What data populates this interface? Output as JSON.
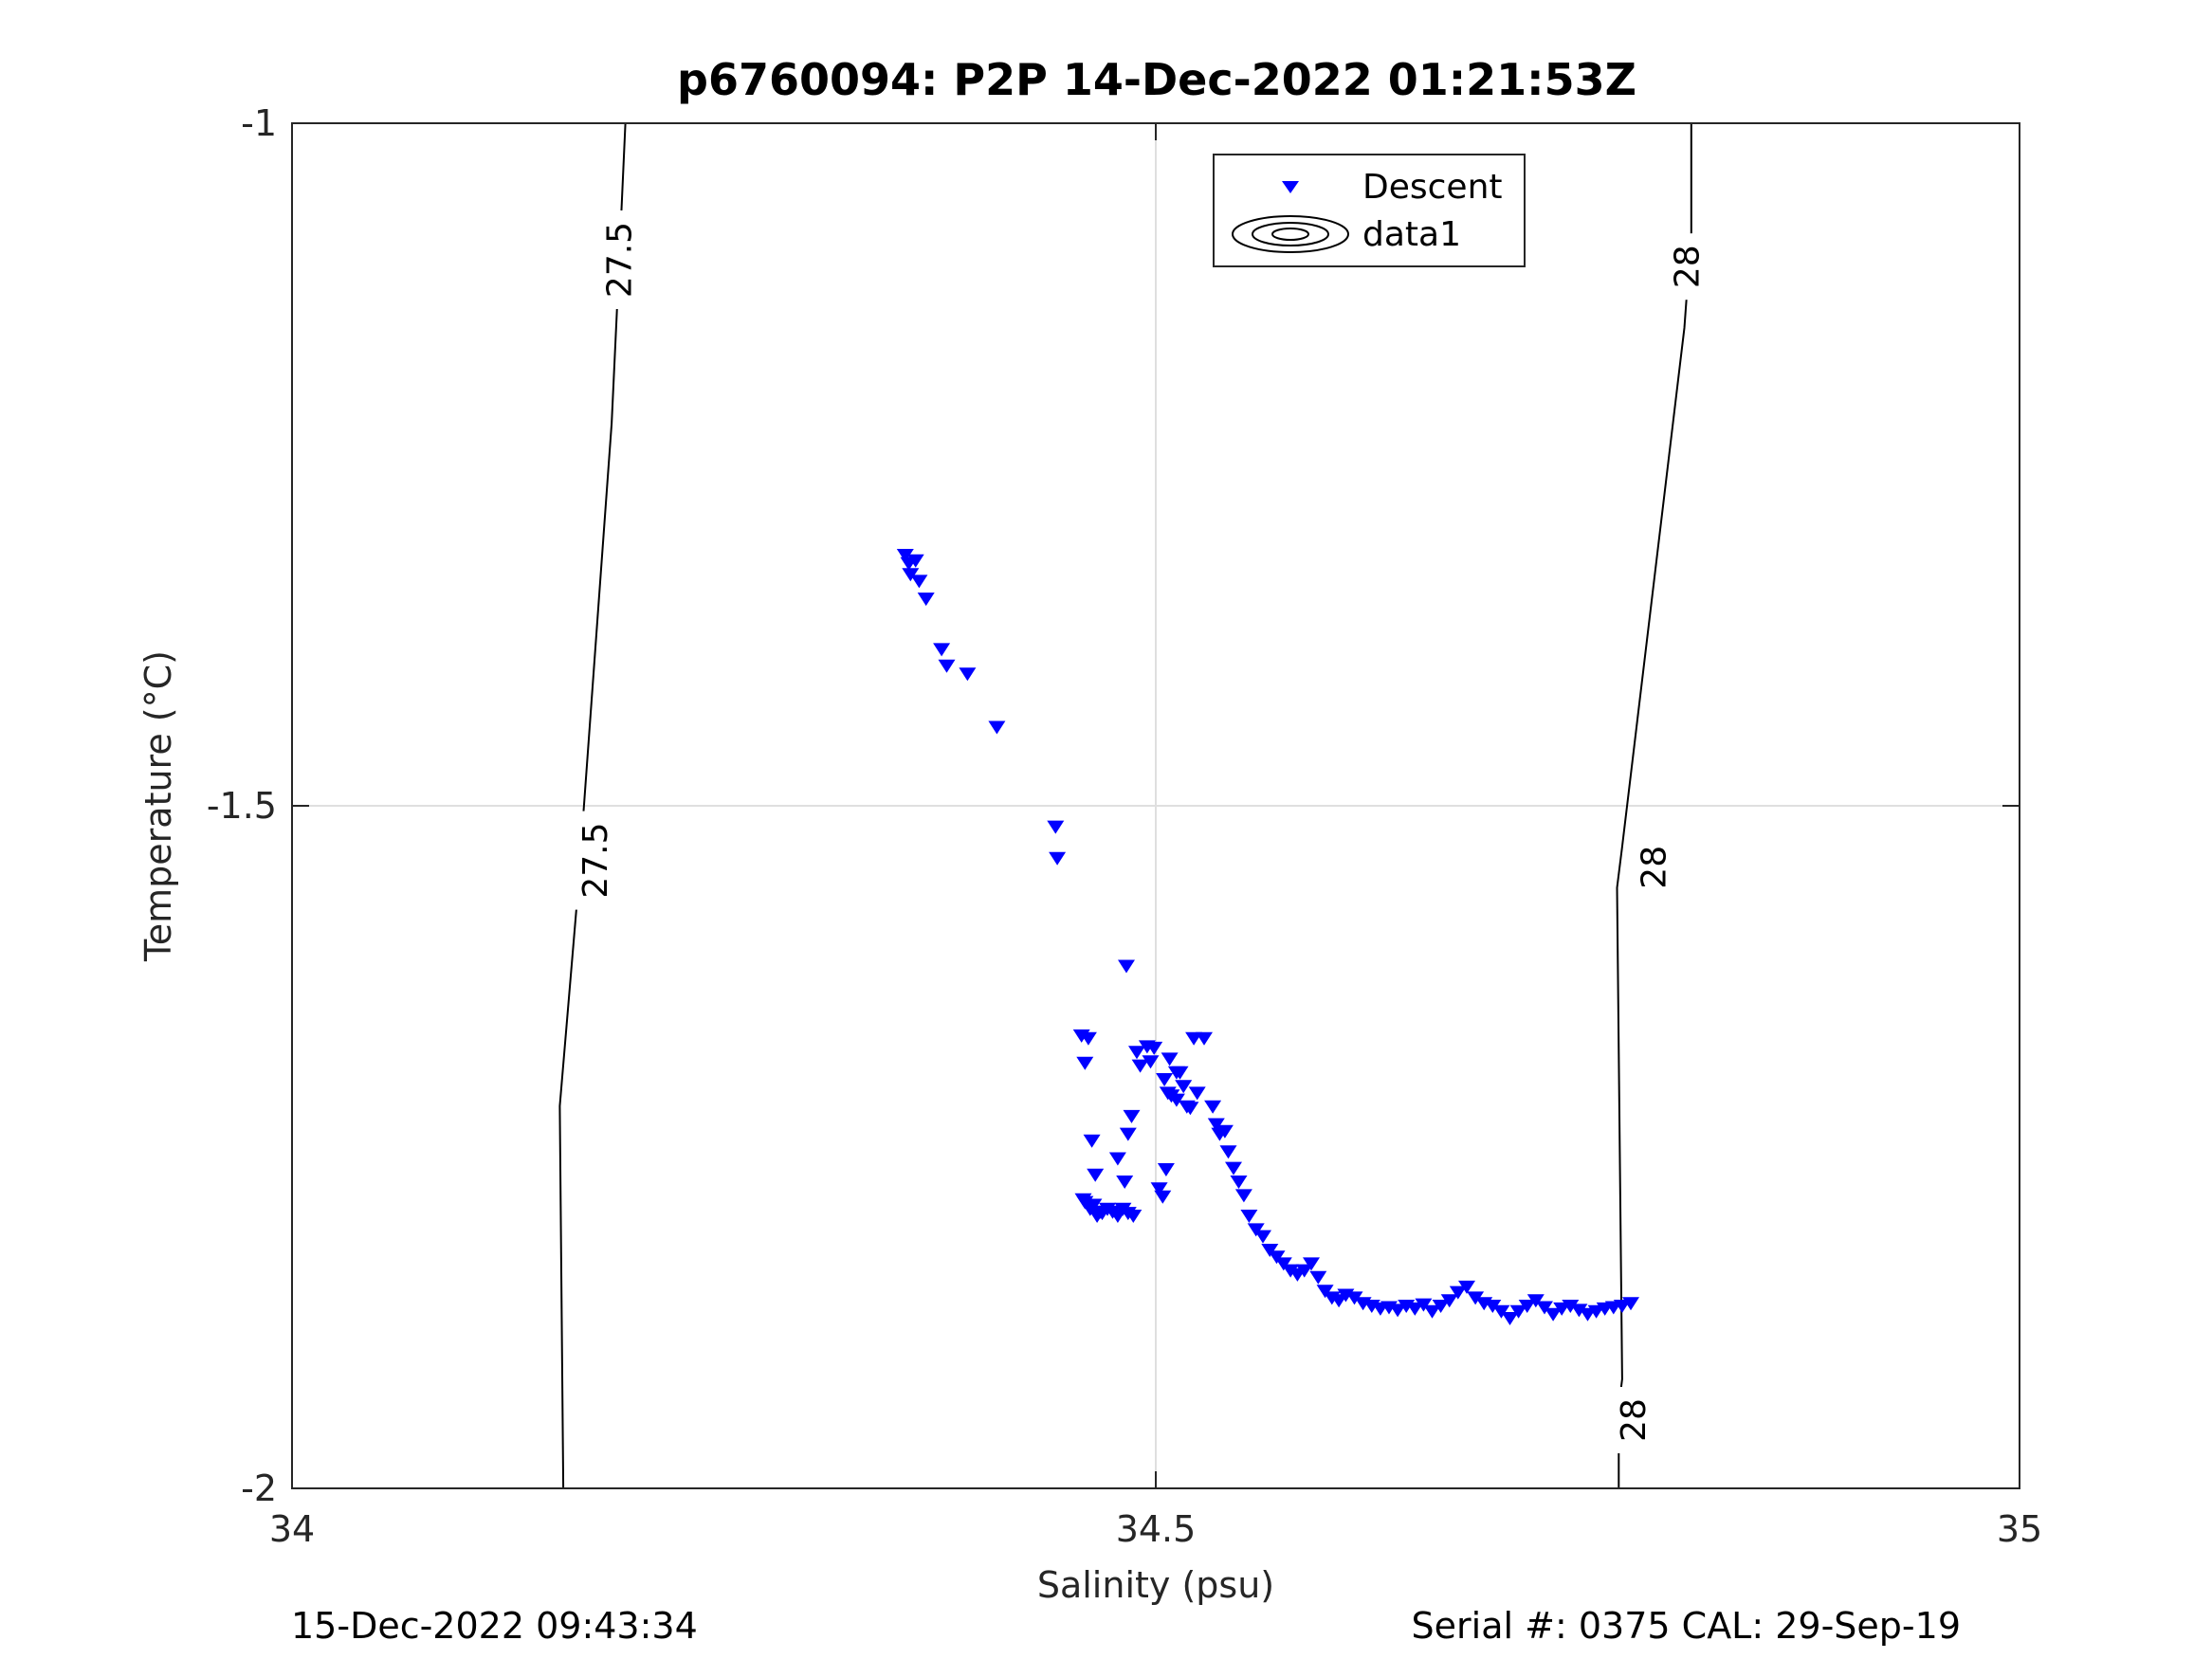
{
  "chart_data": {
    "type": "scatter",
    "title": "p6760094: P2P 14-Dec-2022 01:21:53Z",
    "xlabel": "Salinity (psu)",
    "ylabel": "Temperature (°C)",
    "xlim": [
      34,
      35
    ],
    "ylim": [
      -2,
      -1
    ],
    "x_ticks": [
      "34",
      "34.5",
      "35"
    ],
    "y_ticks": [
      "-1",
      "-1.5",
      "-2"
    ],
    "grid": true,
    "legend_position": "top-center",
    "legend": [
      {
        "label": "Descent",
        "marker": "triangle-down",
        "color": "#0000ff"
      },
      {
        "label": "data1",
        "marker": "contour",
        "color": "#000000"
      }
    ],
    "footer_left": "15-Dec-2022 09:43:34",
    "footer_right": "Serial #: 0375  CAL: 29-Sep-19",
    "contours": [
      {
        "level": "27.5",
        "points": [
          [
            34.193,
            -1.0
          ],
          [
            34.188,
            -1.14
          ],
          [
            34.185,
            -1.22
          ],
          [
            34.165,
            -1.57
          ],
          [
            34.155,
            -1.72
          ],
          [
            34.157,
            -2.0
          ]
        ],
        "labels": [
          {
            "text": "27.5",
            "x": 34.189,
            "y": -1.1
          },
          {
            "text": "27.5",
            "x": 34.175,
            "y": -1.54
          }
        ]
      },
      {
        "level": "28",
        "points": [
          [
            34.81,
            -1.0
          ],
          [
            34.81,
            -1.08
          ],
          [
            34.806,
            -1.15
          ],
          [
            34.77,
            -1.53
          ],
          [
            34.767,
            -1.56
          ],
          [
            34.77,
            -1.92
          ],
          [
            34.768,
            -1.94
          ],
          [
            34.768,
            -2.0
          ]
        ],
        "labels": [
          {
            "text": "28",
            "x": 34.807,
            "y": -1.105
          },
          {
            "text": "28",
            "x": 34.788,
            "y": -1.545
          },
          {
            "text": "28",
            "x": 34.776,
            "y": -1.95
          }
        ]
      }
    ],
    "series": [
      {
        "name": "Descent",
        "color": "#0000ff",
        "marker": "triangle-down",
        "x": [
          34.355,
          34.357,
          34.358,
          34.361,
          34.363,
          34.367,
          34.376,
          34.379,
          34.391,
          34.408,
          34.442,
          34.443,
          34.483,
          34.457,
          34.459,
          34.461,
          34.463,
          34.465,
          34.458,
          34.459,
          34.462,
          34.464,
          34.466,
          34.468,
          34.469,
          34.472,
          34.475,
          34.478,
          34.481,
          34.484,
          34.487,
          34.478,
          34.482,
          34.484,
          34.486,
          34.489,
          34.491,
          34.495,
          34.497,
          34.499,
          34.502,
          34.504,
          34.506,
          34.508,
          34.512,
          34.505,
          34.507,
          34.509,
          34.512,
          34.514,
          34.516,
          34.518,
          34.52,
          34.522,
          34.524,
          34.528,
          34.533,
          34.535,
          34.537,
          34.54,
          34.542,
          34.545,
          34.548,
          34.551,
          34.554,
          34.558,
          34.562,
          34.566,
          34.57,
          34.574,
          34.578,
          34.582,
          34.586,
          34.59,
          34.594,
          34.598,
          34.602,
          34.606,
          34.61,
          34.615,
          34.62,
          34.625,
          34.63,
          34.635,
          34.64,
          34.645,
          34.65,
          34.655,
          34.66,
          34.665,
          34.67,
          34.675,
          34.68,
          34.685,
          34.69,
          34.695,
          34.7,
          34.705,
          34.71,
          34.715,
          34.72,
          34.725,
          34.73,
          34.735,
          34.74,
          34.745,
          34.75,
          34.755,
          34.76,
          34.765,
          34.77,
          34.775
        ],
        "y": [
          -1.316,
          -1.322,
          -1.33,
          -1.32,
          -1.335,
          -1.348,
          -1.385,
          -1.397,
          -1.403,
          -1.442,
          -1.515,
          -1.538,
          -1.617,
          -1.668,
          -1.688,
          -1.67,
          -1.745,
          -1.77,
          -1.788,
          -1.79,
          -1.795,
          -1.792,
          -1.8,
          -1.797,
          -1.798,
          -1.795,
          -1.797,
          -1.8,
          -1.795,
          -1.798,
          -1.8,
          -1.758,
          -1.775,
          -1.74,
          -1.727,
          -1.68,
          -1.69,
          -1.676,
          -1.687,
          -1.677,
          -1.78,
          -1.786,
          -1.766,
          -1.685,
          -1.695,
          -1.7,
          -1.71,
          -1.712,
          -1.715,
          -1.695,
          -1.705,
          -1.72,
          -1.721,
          -1.67,
          -1.71,
          -1.67,
          -1.72,
          -1.733,
          -1.74,
          -1.738,
          -1.753,
          -1.765,
          -1.775,
          -1.785,
          -1.8,
          -1.81,
          -1.815,
          -1.825,
          -1.83,
          -1.835,
          -1.84,
          -1.843,
          -1.84,
          -1.835,
          -1.845,
          -1.855,
          -1.86,
          -1.862,
          -1.858,
          -1.86,
          -1.864,
          -1.866,
          -1.868,
          -1.867,
          -1.869,
          -1.866,
          -1.868,
          -1.865,
          -1.87,
          -1.866,
          -1.862,
          -1.856,
          -1.852,
          -1.86,
          -1.864,
          -1.866,
          -1.87,
          -1.875,
          -1.87,
          -1.866,
          -1.862,
          -1.867,
          -1.872,
          -1.868,
          -1.866,
          -1.869,
          -1.872,
          -1.87,
          -1.868,
          -1.867,
          -1.866,
          -1.864
        ]
      }
    ]
  }
}
